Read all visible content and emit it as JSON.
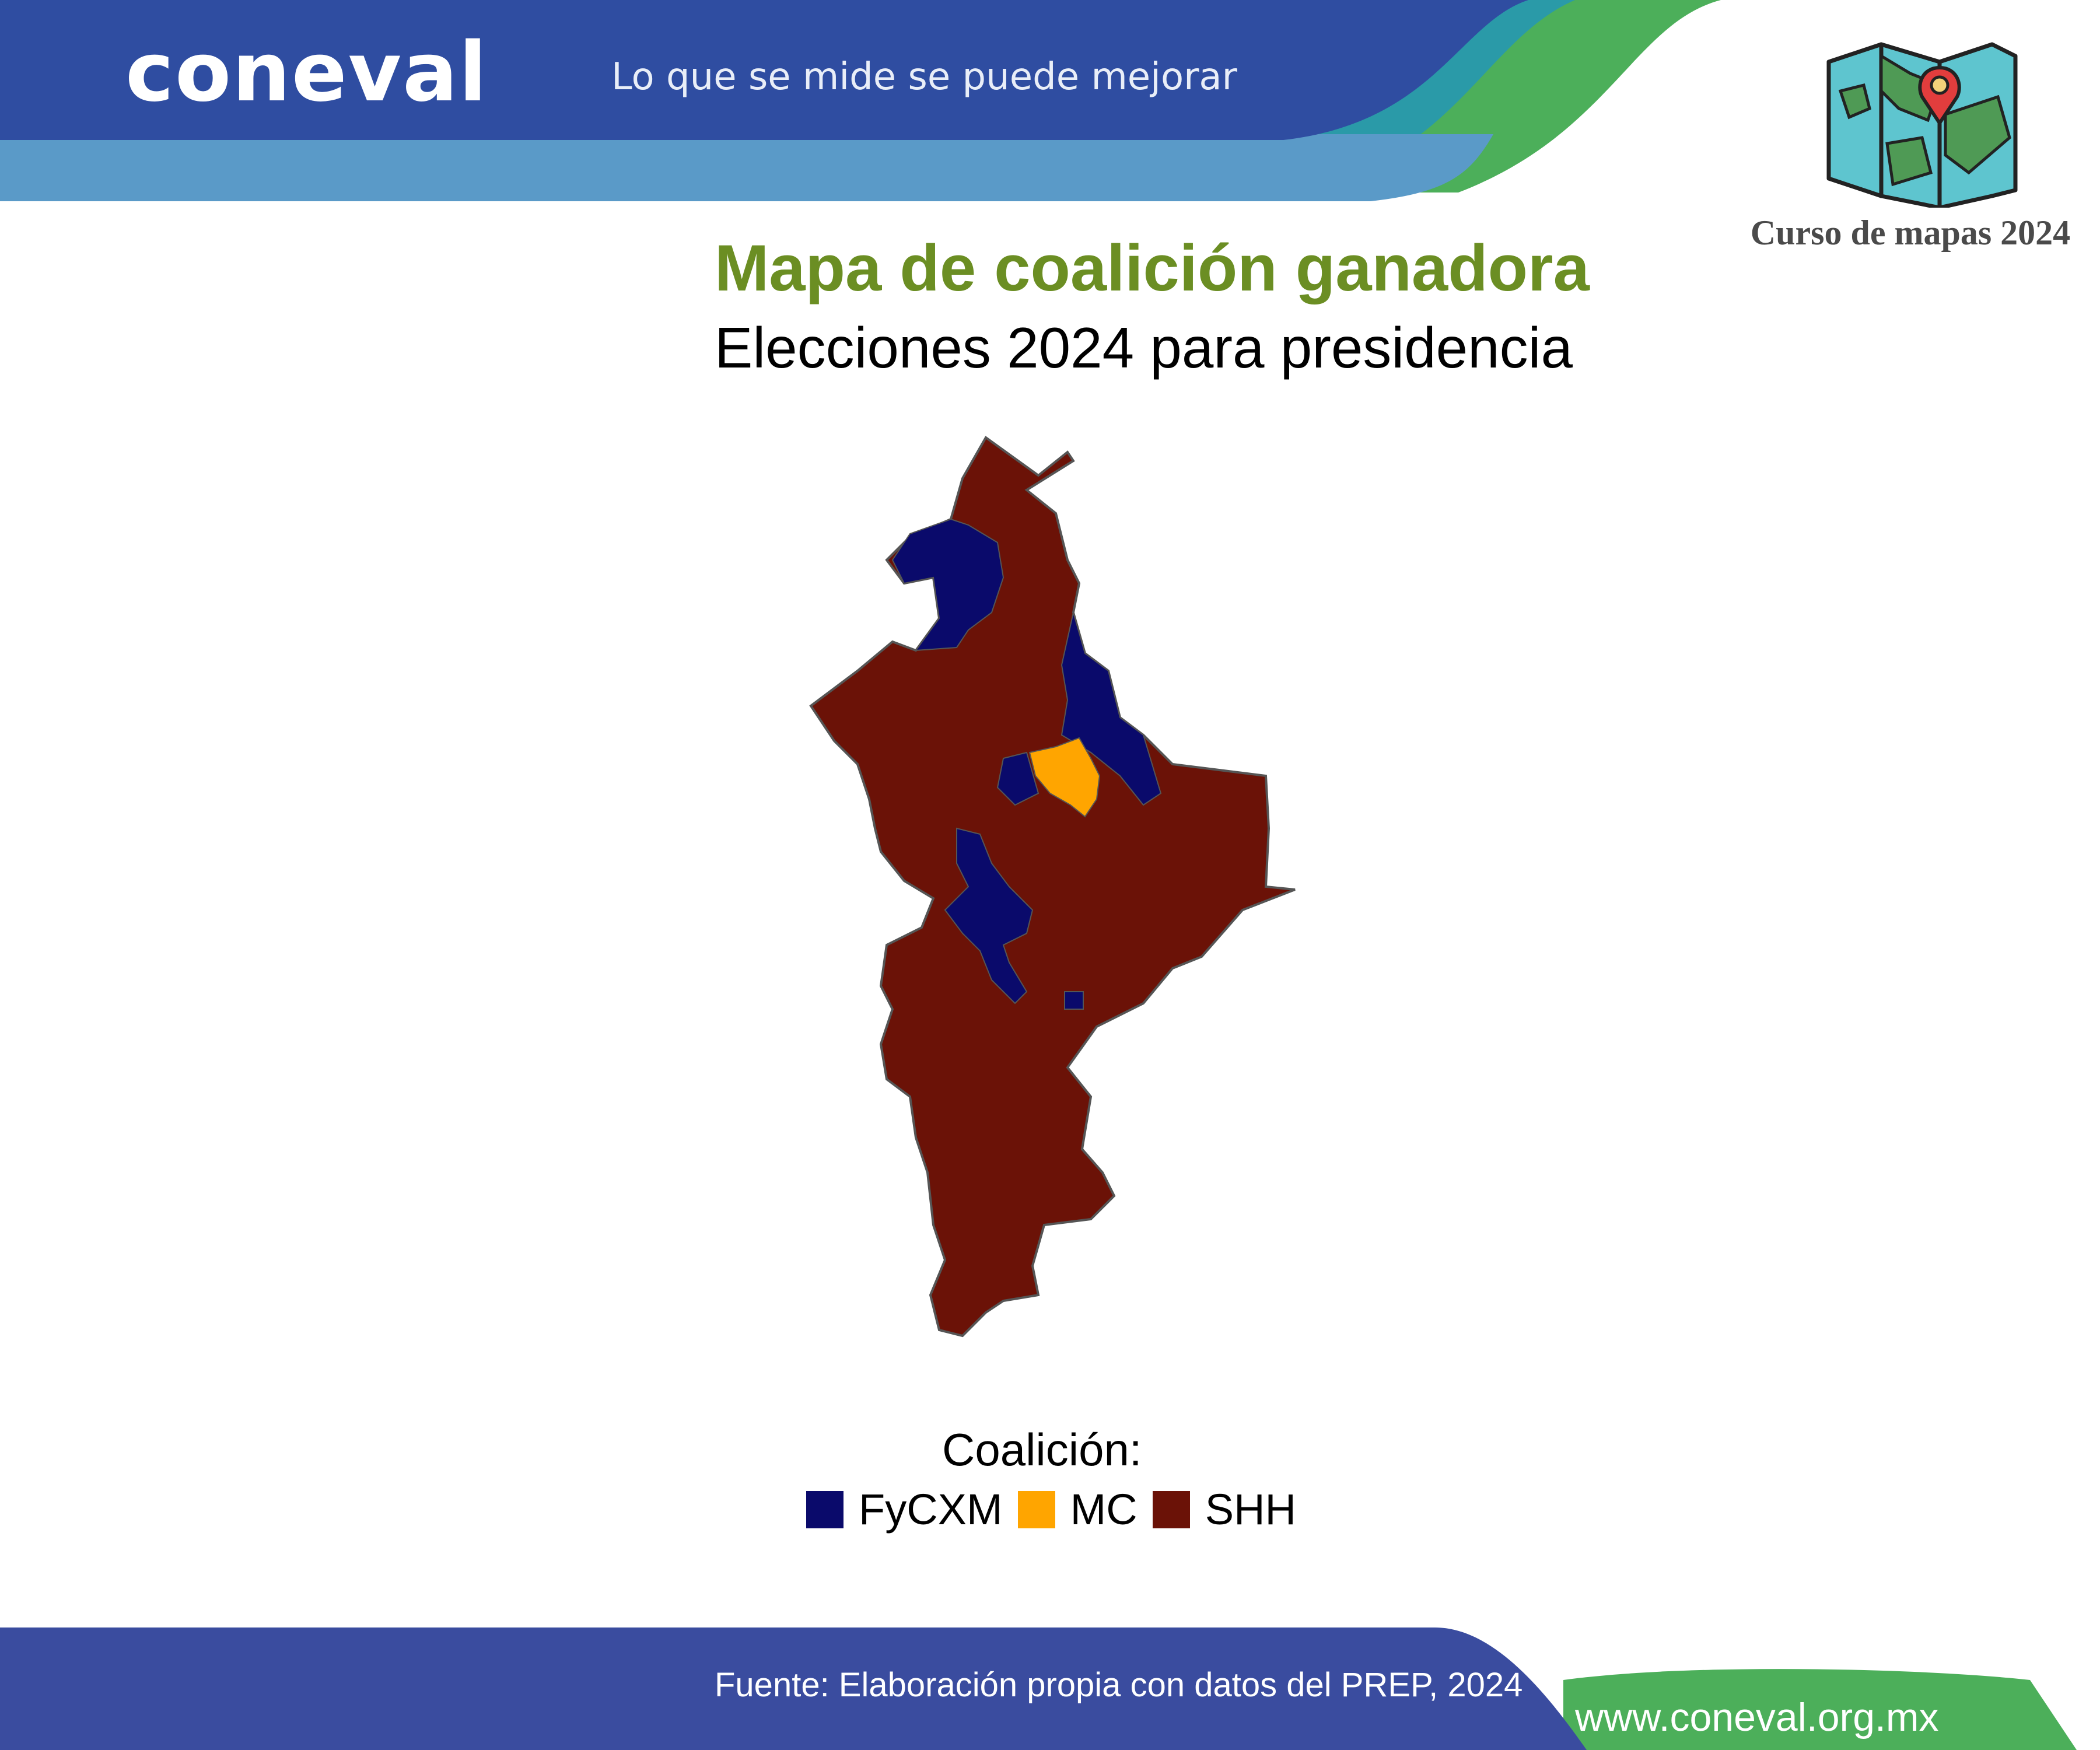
{
  "header": {
    "logo_text": "coneval",
    "tagline": "Lo que se mide se puede mejorar",
    "course_label": "Curso de mapas 2024",
    "course_icon": "folded-map-with-pin-icon"
  },
  "main": {
    "title": "Mapa de coalición ganadora",
    "subtitle": "Elecciones 2024 para presidencia"
  },
  "map": {
    "colors": {
      "FyCXM": "#0a0a6b",
      "MC": "#ffa500",
      "SHH": "#6b1207",
      "border": "#555555"
    }
  },
  "legend": {
    "title": "Coalición:",
    "items": [
      {
        "label": "FyCXM",
        "color": "#0a0a6b"
      },
      {
        "label": "MC",
        "color": "#ffa500"
      },
      {
        "label": "SHH",
        "color": "#6b1207"
      }
    ]
  },
  "footer": {
    "source": "Fuente: Elaboración propia con datos del PREP, 2024",
    "website": "www.coneval.org.mx"
  },
  "colors": {
    "header_blue": "#2f4da1",
    "light_blue": "#5a9ac8",
    "teal": "#2a9aa8",
    "green": "#4caf5a",
    "title_green": "#6b8e23"
  }
}
